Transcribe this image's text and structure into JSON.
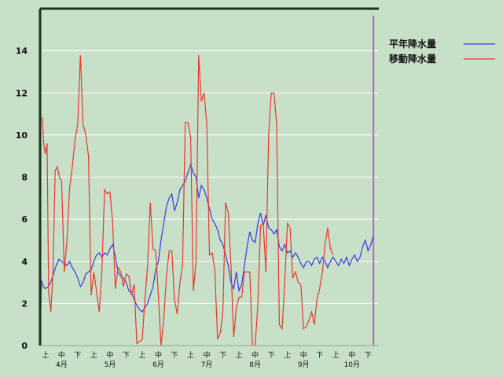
{
  "chart_data": {
    "type": "line",
    "title": "",
    "xlabel": "",
    "ylabel": "",
    "ylim": [
      0,
      16
    ],
    "y_ticks": [
      0,
      2,
      4,
      6,
      8,
      10,
      12,
      14
    ],
    "grid": true,
    "legend_position": "top-right",
    "x_ticks": [
      {
        "x": 1,
        "label": "上"
      },
      {
        "x": 4,
        "label": "中"
      },
      {
        "x": 7,
        "label": "下"
      },
      {
        "x": 10,
        "label": "上"
      },
      {
        "x": 13,
        "label": "中"
      },
      {
        "x": 16,
        "label": "下"
      },
      {
        "x": 19,
        "label": "上"
      },
      {
        "x": 22,
        "label": "中"
      },
      {
        "x": 25,
        "label": "下"
      },
      {
        "x": 28,
        "label": "上"
      },
      {
        "x": 31,
        "label": "中"
      },
      {
        "x": 34,
        "label": "下"
      },
      {
        "x": 37,
        "label": "上"
      },
      {
        "x": 40,
        "label": "中"
      },
      {
        "x": 43,
        "label": "下"
      },
      {
        "x": 46,
        "label": "上"
      },
      {
        "x": 49,
        "label": "中"
      },
      {
        "x": 52,
        "label": "下"
      },
      {
        "x": 55,
        "label": "上"
      },
      {
        "x": 58,
        "label": "中"
      },
      {
        "x": 61,
        "label": "下"
      }
    ],
    "month_labels": [
      {
        "x": 4,
        "label": "4月"
      },
      {
        "x": 13,
        "label": "5月"
      },
      {
        "x": 22,
        "label": "6月"
      },
      {
        "x": 31,
        "label": "7月"
      },
      {
        "x": 40,
        "label": "8月"
      },
      {
        "x": 49,
        "label": "9月"
      },
      {
        "x": 58,
        "label": "10月"
      }
    ],
    "x_range": [
      0,
      63
    ],
    "marker_x": 62,
    "series": [
      {
        "name": "平年降水量",
        "color": "#3a3ae6",
        "points": [
          [
            0,
            0
          ],
          [
            0.25,
            3.1
          ],
          [
            0.6,
            2.8
          ],
          [
            1,
            2.7
          ],
          [
            1.5,
            2.8
          ],
          [
            2,
            3.0
          ],
          [
            2.5,
            3.4
          ],
          [
            3,
            3.8
          ],
          [
            3.5,
            4.1
          ],
          [
            4,
            4.0
          ],
          [
            4.5,
            3.9
          ],
          [
            5,
            3.8
          ],
          [
            5.5,
            4.0
          ],
          [
            6,
            3.7
          ],
          [
            6.5,
            3.5
          ],
          [
            7,
            3.2
          ],
          [
            7.5,
            2.8
          ],
          [
            8,
            3.0
          ],
          [
            8.5,
            3.4
          ],
          [
            9,
            3.5
          ],
          [
            9.5,
            3.6
          ],
          [
            10,
            4.0
          ],
          [
            10.5,
            4.3
          ],
          [
            11,
            4.4
          ],
          [
            11.5,
            4.2
          ],
          [
            12,
            4.4
          ],
          [
            12.5,
            4.3
          ],
          [
            13,
            4.6
          ],
          [
            13.5,
            4.8
          ],
          [
            14,
            4.2
          ],
          [
            14.5,
            3.5
          ],
          [
            15,
            3.3
          ],
          [
            15.5,
            3.2
          ],
          [
            16,
            3.0
          ],
          [
            16.5,
            2.6
          ],
          [
            17,
            2.5
          ],
          [
            17.5,
            2.2
          ],
          [
            18,
            1.9
          ],
          [
            18.5,
            1.7
          ],
          [
            19,
            1.6
          ],
          [
            19.5,
            1.8
          ],
          [
            20,
            2.0
          ],
          [
            20.5,
            2.4
          ],
          [
            21,
            2.8
          ],
          [
            21.5,
            3.6
          ],
          [
            22,
            4.0
          ],
          [
            22.5,
            5.0
          ],
          [
            23,
            5.8
          ],
          [
            23.5,
            6.6
          ],
          [
            24,
            7.0
          ],
          [
            24.5,
            7.2
          ],
          [
            25,
            6.4
          ],
          [
            25.5,
            6.8
          ],
          [
            26,
            7.4
          ],
          [
            26.5,
            7.6
          ],
          [
            27,
            7.8
          ],
          [
            27.5,
            8.2
          ],
          [
            28,
            8.6
          ],
          [
            28.5,
            8.2
          ],
          [
            29,
            8.0
          ],
          [
            29.5,
            7.0
          ],
          [
            30,
            7.6
          ],
          [
            30.5,
            7.4
          ],
          [
            31,
            7.0
          ],
          [
            31.5,
            6.5
          ],
          [
            32,
            6.0
          ],
          [
            32.5,
            5.8
          ],
          [
            33,
            5.5
          ],
          [
            33.5,
            5.0
          ],
          [
            34,
            4.8
          ],
          [
            34.5,
            4.3
          ],
          [
            35,
            3.8
          ],
          [
            35.5,
            3.0
          ],
          [
            36,
            2.7
          ],
          [
            36.5,
            3.5
          ],
          [
            37,
            2.6
          ],
          [
            37.5,
            2.9
          ],
          [
            38,
            3.8
          ],
          [
            38.5,
            4.7
          ],
          [
            39,
            5.4
          ],
          [
            39.5,
            5.0
          ],
          [
            40,
            4.9
          ],
          [
            40.5,
            5.8
          ],
          [
            41,
            6.3
          ],
          [
            41.5,
            5.7
          ],
          [
            42,
            6.2
          ],
          [
            42.5,
            5.6
          ],
          [
            43,
            5.5
          ],
          [
            43.5,
            5.3
          ],
          [
            44,
            5.5
          ],
          [
            44.5,
            4.7
          ],
          [
            45,
            4.5
          ],
          [
            45.5,
            4.8
          ],
          [
            46,
            4.4
          ],
          [
            46.5,
            4.5
          ],
          [
            47,
            4.2
          ],
          [
            47.5,
            4.4
          ],
          [
            48,
            4.2
          ],
          [
            48.5,
            3.9
          ],
          [
            49,
            3.7
          ],
          [
            49.5,
            4.0
          ],
          [
            50,
            4.0
          ],
          [
            50.5,
            3.8
          ],
          [
            51,
            4.1
          ],
          [
            51.5,
            4.2
          ],
          [
            52,
            3.9
          ],
          [
            52.5,
            4.2
          ],
          [
            53,
            4.0
          ],
          [
            53.5,
            3.7
          ],
          [
            54,
            4.0
          ],
          [
            54.5,
            4.2
          ],
          [
            55,
            4.0
          ],
          [
            55.5,
            3.8
          ],
          [
            56,
            4.1
          ],
          [
            56.5,
            3.9
          ],
          [
            57,
            4.2
          ],
          [
            57.5,
            3.8
          ],
          [
            58,
            4.1
          ],
          [
            58.5,
            4.3
          ],
          [
            59,
            4.0
          ],
          [
            59.5,
            4.2
          ],
          [
            60,
            4.7
          ],
          [
            60.5,
            5.0
          ],
          [
            61,
            4.5
          ],
          [
            61.5,
            4.8
          ],
          [
            62,
            5.2
          ]
        ]
      },
      {
        "name": "移動降水量",
        "color": "#e63a2e",
        "points": [
          [
            0,
            0
          ],
          [
            0.15,
            10.8
          ],
          [
            0.4,
            10.8
          ],
          [
            0.7,
            9.5
          ],
          [
            1,
            9.1
          ],
          [
            1.3,
            9.6
          ],
          [
            1.6,
            2.5
          ],
          [
            2,
            1.6
          ],
          [
            2.4,
            3.5
          ],
          [
            2.8,
            8.3
          ],
          [
            3.2,
            8.5
          ],
          [
            3.6,
            8.0
          ],
          [
            4,
            7.8
          ],
          [
            4.5,
            3.5
          ],
          [
            5,
            5.0
          ],
          [
            5.5,
            7.5
          ],
          [
            6,
            8.5
          ],
          [
            6.5,
            9.8
          ],
          [
            7,
            10.5
          ],
          [
            7.5,
            13.8
          ],
          [
            8,
            10.5
          ],
          [
            8.5,
            10.0
          ],
          [
            9,
            9.0
          ],
          [
            9.5,
            2.4
          ],
          [
            10,
            3.5
          ],
          [
            10.5,
            2.6
          ],
          [
            11,
            1.6
          ],
          [
            11.5,
            3.6
          ],
          [
            12,
            7.4
          ],
          [
            12.5,
            7.2
          ],
          [
            13,
            7.3
          ],
          [
            13.5,
            5.8
          ],
          [
            14,
            2.7
          ],
          [
            14.5,
            3.7
          ],
          [
            15,
            3.5
          ],
          [
            15.5,
            2.8
          ],
          [
            16,
            3.4
          ],
          [
            16.5,
            3.3
          ],
          [
            17,
            2.4
          ],
          [
            17.5,
            2.9
          ],
          [
            18,
            0.1
          ],
          [
            18.5,
            0.2
          ],
          [
            19,
            0.3
          ],
          [
            19.5,
            2.2
          ],
          [
            20,
            3.8
          ],
          [
            20.5,
            6.8
          ],
          [
            21,
            4.6
          ],
          [
            21.5,
            4.5
          ],
          [
            22,
            2.4
          ],
          [
            22.5,
            0.0
          ],
          [
            23,
            1.2
          ],
          [
            23.5,
            3.3
          ],
          [
            24,
            4.5
          ],
          [
            24.5,
            4.5
          ],
          [
            25,
            2.2
          ],
          [
            25.5,
            1.5
          ],
          [
            26,
            3.0
          ],
          [
            26.5,
            3.8
          ],
          [
            27,
            10.6
          ],
          [
            27.5,
            10.6
          ],
          [
            28,
            9.9
          ],
          [
            28.5,
            2.6
          ],
          [
            29,
            4.0
          ],
          [
            29.5,
            13.8
          ],
          [
            30,
            11.6
          ],
          [
            30.5,
            12.0
          ],
          [
            31,
            10.5
          ],
          [
            31.5,
            4.3
          ],
          [
            32,
            4.4
          ],
          [
            32.5,
            3.6
          ],
          [
            33,
            0.3
          ],
          [
            33.5,
            0.6
          ],
          [
            34,
            1.6
          ],
          [
            34.5,
            6.8
          ],
          [
            35,
            6.3
          ],
          [
            35.5,
            3.8
          ],
          [
            36,
            0.4
          ],
          [
            36.5,
            1.8
          ],
          [
            37,
            2.3
          ],
          [
            37.5,
            2.3
          ],
          [
            38,
            3.5
          ],
          [
            38.5,
            3.5
          ],
          [
            39,
            3.5
          ],
          [
            39.5,
            0.0
          ],
          [
            40,
            0.0
          ],
          [
            40.5,
            2.0
          ],
          [
            41,
            5.7
          ],
          [
            41.5,
            5.8
          ],
          [
            42,
            3.5
          ],
          [
            42.5,
            10.0
          ],
          [
            43,
            12.0
          ],
          [
            43.5,
            12.0
          ],
          [
            44,
            10.5
          ],
          [
            44.5,
            1.0
          ],
          [
            45,
            0.8
          ],
          [
            45.5,
            3.0
          ],
          [
            46,
            5.8
          ],
          [
            46.5,
            5.6
          ],
          [
            47,
            3.2
          ],
          [
            47.5,
            3.5
          ],
          [
            48,
            3.0
          ],
          [
            48.5,
            2.9
          ],
          [
            49,
            0.8
          ],
          [
            49.5,
            0.9
          ],
          [
            50,
            1.2
          ],
          [
            50.5,
            1.6
          ],
          [
            51,
            1.0
          ],
          [
            51.5,
            2.2
          ],
          [
            52,
            2.7
          ],
          [
            52.5,
            3.5
          ],
          [
            53,
            4.8
          ],
          [
            53.5,
            5.6
          ],
          [
            54,
            4.6
          ],
          [
            54.5,
            4.3
          ]
        ]
      }
    ]
  },
  "colors": {
    "background": "#c8dfc8",
    "grid": "#ffffff",
    "axis": "#1a331a",
    "marker": "#c060c0"
  }
}
